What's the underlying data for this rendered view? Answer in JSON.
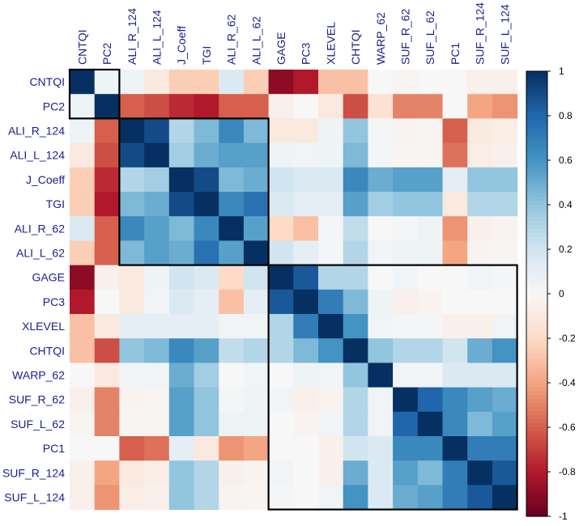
{
  "chart_data": {
    "type": "heatmap",
    "variables": [
      "CNTQI",
      "PC2",
      "ALI_R_124",
      "ALI_L_124",
      "J_Coeff",
      "TGI",
      "ALI_R_62",
      "ALI_L_62",
      "GAGE",
      "PC3",
      "XLEVEL",
      "CHTQI",
      "WARP_62",
      "SUF_R_62",
      "SUF_L_62",
      "PC1",
      "SUF_R_124",
      "SUF_L_124"
    ],
    "matrix": [
      [
        1.0,
        0.05,
        0.05,
        -0.1,
        -0.25,
        -0.25,
        0.15,
        -0.25,
        -0.9,
        -0.8,
        -0.3,
        -0.3,
        0.0,
        -0.02,
        0.0,
        0.0,
        -0.05,
        -0.05
      ],
      [
        0.05,
        1.0,
        -0.6,
        -0.65,
        -0.75,
        -0.8,
        -0.6,
        -0.6,
        -0.05,
        0.0,
        -0.1,
        -0.65,
        -0.15,
        -0.5,
        -0.5,
        0.0,
        -0.4,
        -0.45
      ],
      [
        0.05,
        -0.6,
        1.0,
        0.9,
        0.3,
        0.45,
        0.65,
        0.45,
        -0.1,
        -0.1,
        0.05,
        0.4,
        0.02,
        -0.03,
        -0.02,
        -0.6,
        -0.1,
        -0.07
      ],
      [
        -0.1,
        -0.65,
        0.9,
        1.0,
        0.35,
        0.5,
        0.55,
        0.55,
        0.05,
        0.03,
        0.05,
        0.45,
        0.02,
        -0.02,
        -0.02,
        -0.55,
        -0.07,
        -0.05
      ],
      [
        -0.25,
        -0.75,
        0.3,
        0.35,
        1.0,
        0.9,
        0.45,
        0.5,
        0.2,
        0.15,
        0.15,
        0.65,
        0.5,
        0.55,
        0.55,
        0.1,
        0.4,
        0.4
      ],
      [
        -0.25,
        -0.8,
        0.45,
        0.5,
        0.9,
        1.0,
        0.65,
        0.75,
        0.15,
        0.1,
        0.1,
        0.55,
        0.35,
        0.4,
        0.4,
        -0.1,
        0.3,
        0.3
      ],
      [
        0.15,
        -0.6,
        0.65,
        0.55,
        0.45,
        0.65,
        1.0,
        0.55,
        -0.2,
        -0.3,
        0.02,
        0.25,
        0.0,
        0.02,
        0.05,
        -0.45,
        -0.05,
        -0.03
      ],
      [
        -0.25,
        -0.6,
        0.45,
        0.55,
        0.5,
        0.75,
        0.55,
        1.0,
        0.2,
        0.1,
        0.02,
        0.3,
        0.03,
        0.05,
        0.05,
        -0.4,
        -0.03,
        -0.02
      ],
      [
        -0.9,
        -0.05,
        -0.1,
        0.05,
        0.2,
        0.15,
        -0.2,
        0.2,
        1.0,
        0.85,
        0.3,
        0.3,
        0.0,
        0.03,
        0.0,
        0.0,
        0.03,
        0.02
      ],
      [
        -0.8,
        0.0,
        -0.1,
        0.03,
        0.15,
        0.1,
        -0.3,
        0.1,
        0.85,
        1.0,
        0.7,
        0.45,
        0.05,
        -0.05,
        -0.03,
        0.0,
        0.0,
        0.0
      ],
      [
        -0.3,
        -0.1,
        0.1,
        0.1,
        0.1,
        0.1,
        0.03,
        0.03,
        0.3,
        0.7,
        1.0,
        0.6,
        0.03,
        0.02,
        0.02,
        -0.05,
        -0.05,
        0.03
      ],
      [
        -0.3,
        -0.65,
        0.4,
        0.45,
        0.65,
        0.55,
        0.25,
        0.3,
        0.3,
        0.45,
        0.6,
        1.0,
        0.4,
        0.3,
        0.3,
        0.2,
        0.5,
        0.6
      ],
      [
        0.0,
        -0.1,
        0.03,
        0.03,
        0.5,
        0.35,
        0.0,
        0.03,
        0.0,
        0.05,
        0.03,
        0.4,
        1.0,
        0.03,
        0.03,
        0.15,
        0.15,
        0.15
      ],
      [
        -0.05,
        -0.5,
        -0.03,
        -0.02,
        0.55,
        0.4,
        0.02,
        0.05,
        0.03,
        -0.05,
        -0.03,
        0.3,
        0.03,
        1.0,
        0.8,
        0.65,
        0.55,
        0.5
      ],
      [
        -0.02,
        -0.5,
        -0.02,
        -0.02,
        0.55,
        0.4,
        0.05,
        0.05,
        0.0,
        -0.03,
        0.03,
        0.3,
        0.03,
        0.8,
        1.0,
        0.65,
        0.45,
        0.55
      ],
      [
        0.0,
        0.0,
        -0.6,
        -0.55,
        0.1,
        -0.1,
        -0.45,
        -0.4,
        0.0,
        0.0,
        -0.05,
        0.2,
        0.15,
        0.65,
        0.65,
        1.0,
        0.7,
        0.7
      ],
      [
        -0.05,
        -0.4,
        -0.1,
        -0.07,
        0.4,
        0.3,
        -0.05,
        -0.03,
        0.03,
        0.0,
        -0.05,
        0.5,
        0.15,
        0.55,
        0.45,
        0.7,
        1.0,
        0.85
      ],
      [
        -0.05,
        -0.45,
        -0.07,
        -0.05,
        0.4,
        0.3,
        -0.03,
        -0.02,
        0.02,
        0.0,
        0.03,
        0.6,
        0.15,
        0.5,
        0.55,
        0.7,
        0.85,
        1.0
      ]
    ],
    "clusters": [
      {
        "start": "CNTQI",
        "end": "PC2"
      },
      {
        "start": "ALI_R_124",
        "end": "ALI_L_62"
      },
      {
        "start": "GAGE",
        "end": "SUF_L_124"
      }
    ],
    "colorbar": {
      "range": [
        -1,
        1
      ],
      "ticks": [
        "1",
        "0.8",
        "0.6",
        "0.4",
        "0.2",
        "0",
        "-0.2",
        "-0.4",
        "-0.6",
        "-0.8",
        "-1"
      ],
      "tick_values": [
        1,
        0.8,
        0.6,
        0.4,
        0.2,
        0,
        -0.2,
        -0.4,
        -0.6,
        -0.8,
        -1
      ],
      "low_color": "#67001f",
      "mid_color": "#f7f7f7",
      "high_color": "#053061"
    },
    "label_color": "#1a1f8c"
  }
}
